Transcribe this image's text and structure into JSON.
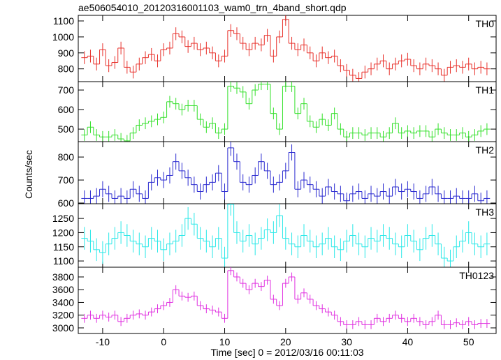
{
  "chart_data": {
    "type": "step",
    "title": "ae506054010_20120316001103_wam0_trn_4band_short.qdp",
    "xlabel": "Time [sec] 0 = 2012/03/16 00:11:03",
    "ylabel": "Counts/sec",
    "x": [
      -13,
      -12,
      -11,
      -10,
      -9,
      -8,
      -7,
      -6,
      -5,
      -4,
      -3,
      -2,
      -1,
      0,
      1,
      2,
      3,
      4,
      5,
      6,
      7,
      8,
      9,
      10,
      11,
      12,
      13,
      14,
      15,
      16,
      17,
      18,
      19,
      20,
      21,
      22,
      23,
      24,
      25,
      26,
      27,
      28,
      29,
      30,
      31,
      32,
      33,
      34,
      35,
      36,
      37,
      38,
      39,
      40,
      41,
      42,
      43,
      44,
      45,
      46,
      47,
      48,
      49,
      50,
      51,
      52,
      53
    ],
    "xlim": [
      -14,
      54.5
    ],
    "xticks": [
      -10,
      0,
      10,
      20,
      30,
      40,
      50
    ],
    "panels": [
      {
        "name": "TH0",
        "color": "#e8302a",
        "yerr": 40,
        "ylim": [
          720,
          1135
        ],
        "yticks": [
          800,
          900,
          1000,
          1100
        ],
        "values": [
          870,
          880,
          830,
          920,
          820,
          840,
          930,
          810,
          780,
          830,
          870,
          890,
          850,
          920,
          930,
          1020,
          1000,
          940,
          960,
          920,
          930,
          900,
          850,
          880,
          1040,
          1020,
          960,
          920,
          960,
          950,
          1010,
          880,
          1000,
          1110,
          960,
          920,
          950,
          900,
          850,
          900,
          870,
          880,
          820,
          790,
          760,
          740,
          780,
          800,
          830,
          850,
          800,
          830,
          850,
          860,
          820,
          800,
          830,
          820,
          800,
          760,
          810,
          820,
          810,
          830,
          800,
          810,
          800
        ]
      },
      {
        "name": "TH1",
        "color": "#33e02a",
        "yerr": 30,
        "ylim": [
          436,
          743
        ],
        "yticks": [
          500,
          600,
          700
        ],
        "values": [
          470,
          510,
          470,
          460,
          460,
          470,
          450,
          440,
          480,
          520,
          530,
          540,
          550,
          560,
          640,
          630,
          600,
          620,
          620,
          550,
          510,
          530,
          480,
          500,
          720,
          710,
          690,
          630,
          700,
          730,
          730,
          580,
          500,
          720,
          720,
          580,
          630,
          540,
          510,
          550,
          520,
          580,
          500,
          460,
          480,
          480,
          470,
          480,
          480,
          460,
          480,
          530,
          480,
          490,
          480,
          490,
          490,
          460,
          500,
          480,
          470,
          470,
          480,
          460,
          470,
          490,
          500
        ]
      },
      {
        "name": "TH2",
        "color": "#2a2ad0",
        "yerr": 35,
        "ylim": [
          597,
          867
        ],
        "yticks": [
          600,
          700,
          800
        ],
        "values": [
          620,
          620,
          630,
          660,
          640,
          620,
          630,
          620,
          660,
          640,
          620,
          690,
          710,
          700,
          720,
          780,
          740,
          710,
          680,
          650,
          680,
          690,
          730,
          650,
          840,
          780,
          690,
          680,
          720,
          780,
          740,
          680,
          690,
          740,
          820,
          660,
          700,
          680,
          660,
          630,
          670,
          650,
          640,
          610,
          640,
          650,
          620,
          640,
          630,
          650,
          630,
          670,
          650,
          660,
          650,
          620,
          640,
          670,
          640,
          620,
          620,
          630,
          620,
          620,
          640,
          610,
          620
        ]
      },
      {
        "name": "TH3",
        "color": "#2ae8e8",
        "yerr": 40,
        "ylim": [
          1078,
          1302
        ],
        "yticks": [
          1100,
          1150,
          1200,
          1250
        ],
        "values": [
          1180,
          1170,
          1140,
          1130,
          1160,
          1180,
          1200,
          1190,
          1170,
          1160,
          1150,
          1180,
          1170,
          1140,
          1160,
          1170,
          1190,
          1250,
          1230,
          1180,
          1170,
          1150,
          1180,
          1110,
          1300,
          1200,
          1170,
          1190,
          1160,
          1180,
          1210,
          1200,
          1260,
          1180,
          1160,
          1150,
          1190,
          1170,
          1150,
          1160,
          1180,
          1150,
          1140,
          1170,
          1190,
          1160,
          1150,
          1180,
          1170,
          1190,
          1180,
          1160,
          1150,
          1190,
          1170,
          1140,
          1180,
          1190,
          1160,
          1110,
          1100,
          1150,
          1170,
          1200,
          1160,
          1150,
          1160
        ]
      },
      {
        "name": "TH0123",
        "color": "#e030e0",
        "yerr": 70,
        "ylim": [
          2912,
          3953
        ],
        "yticks": [
          3000,
          3200,
          3400,
          3600,
          3800
        ],
        "values": [
          3150,
          3200,
          3150,
          3200,
          3170,
          3200,
          3100,
          3150,
          3200,
          3220,
          3200,
          3250,
          3300,
          3350,
          3400,
          3600,
          3500,
          3480,
          3500,
          3350,
          3300,
          3280,
          3250,
          3150,
          3900,
          3800,
          3700,
          3600,
          3700,
          3650,
          3750,
          3450,
          3350,
          3700,
          3800,
          3450,
          3550,
          3450,
          3350,
          3300,
          3250,
          3200,
          3100,
          3050,
          3050,
          3100,
          3050,
          3050,
          3150,
          3100,
          3150,
          3200,
          3150,
          3100,
          3150,
          3100,
          3050,
          3100,
          3200,
          3050,
          3050,
          3080,
          3050,
          3100,
          3050,
          3070,
          3070
        ]
      }
    ]
  }
}
